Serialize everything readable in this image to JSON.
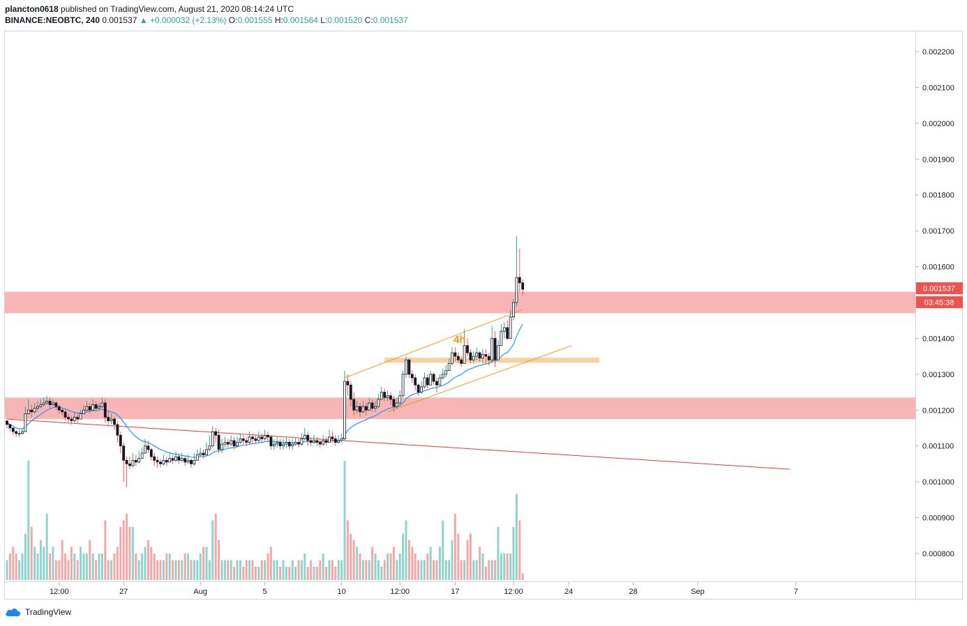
{
  "header": {
    "line1_user": "plancton0618",
    "line1_rest": " published on TradingView.com, August 21, 2020 08:14:24 UTC",
    "symbol": "BINANCE:NEOBTC, 240",
    "last": "0.001537",
    "change": "+0.000032 (+2.13%)",
    "o_label": "O:",
    "o_value": "0.001555",
    "h_label": "H:",
    "h_value": "0.001564",
    "l_label": "L:",
    "l_value": "0.001520",
    "c_label": "C:",
    "c_value": "0.001537"
  },
  "price_tag": "0.001537",
  "countdown": "03:45:38",
  "annotation_label": "4h",
  "footer_brand": "TradingView",
  "colors": {
    "up": "#26a69a",
    "down": "#ef5350",
    "zone": "#f7a8a8",
    "orange": "#f7931a",
    "ma": "#2196f3",
    "trend": "#e53935",
    "vol_up": "#8fd4cc",
    "vol_down": "#f4a7a7"
  },
  "chart_data": {
    "type": "candlestick",
    "symbol": "BINANCE:NEOBTC",
    "interval": "240",
    "ylim": [
      0.00073,
      0.00228
    ],
    "y_ticks": [
      "0.002200",
      "0.002100",
      "0.002000",
      "0.001900",
      "0.001800",
      "0.001700",
      "0.001600",
      "0.001500",
      "0.001400",
      "0.001300",
      "0.001200",
      "0.001100",
      "0.001000",
      "0.000900",
      "0.000800"
    ],
    "x_ticks": [
      {
        "label": "12:00",
        "i": 17
      },
      {
        "label": "27",
        "i": 38
      },
      {
        "label": "Aug",
        "i": 63
      },
      {
        "label": "5",
        "i": 84
      },
      {
        "label": "10",
        "i": 109
      },
      {
        "label": "12:00",
        "i": 128
      },
      {
        "label": "17",
        "i": 146
      },
      {
        "label": "12:00",
        "i": 165
      },
      {
        "label": "24",
        "i": 183
      },
      {
        "label": "28",
        "i": 204
      },
      {
        "label": "Sep",
        "i": 225
      },
      {
        "label": "7",
        "i": 257
      }
    ],
    "zones": [
      {
        "from": 0.00147,
        "to": 0.00153
      },
      {
        "from": 0.001175,
        "to": 0.001235
      }
    ],
    "close": [
      0.00116,
      0.00115,
      0.00114,
      0.001135,
      0.001135,
      0.00114,
      0.00119,
      0.0012,
      0.001195,
      0.001205,
      0.00121,
      0.001215,
      0.00122,
      0.001225,
      0.001215,
      0.00122,
      0.00121,
      0.0012,
      0.001195,
      0.00118,
      0.001175,
      0.00117,
      0.00118,
      0.001175,
      0.00119,
      0.0012,
      0.00121,
      0.0012,
      0.001215,
      0.001205,
      0.00121,
      0.00122,
      0.00118,
      0.00117,
      0.001175,
      0.00116,
      0.00113,
      0.0011,
      0.00106,
      0.00105,
      0.001045,
      0.00106,
      0.001055,
      0.001065,
      0.00108,
      0.0011,
      0.00109,
      0.00107,
      0.00106,
      0.001055,
      0.00105,
      0.00106,
      0.001055,
      0.001065,
      0.00106,
      0.00107,
      0.00106,
      0.001065,
      0.001055,
      0.00106,
      0.00105,
      0.00106,
      0.001075,
      0.00108,
      0.001075,
      0.00109,
      0.0011,
      0.00114,
      0.00113,
      0.00109,
      0.001105,
      0.00111,
      0.001105,
      0.001115,
      0.0011,
      0.00111,
      0.00112,
      0.001115,
      0.00111,
      0.001125,
      0.00112,
      0.001115,
      0.001125,
      0.00112,
      0.00113,
      0.001125,
      0.0011,
      0.001105,
      0.00111,
      0.0011,
      0.001105,
      0.00111,
      0.0011,
      0.001105,
      0.00111,
      0.001105,
      0.00112,
      0.00113,
      0.001115,
      0.00111,
      0.001115,
      0.00111,
      0.001105,
      0.001115,
      0.00111,
      0.001125,
      0.00112,
      0.00111,
      0.001115,
      0.00112,
      0.00128,
      0.00127,
      0.00123,
      0.0012,
      0.00121,
      0.001195,
      0.00121,
      0.0012,
      0.00122,
      0.001205,
      0.00121,
      0.00123,
      0.00125,
      0.001235,
      0.00124,
      0.00123,
      0.00121,
      0.00122,
      0.00124,
      0.0013,
      0.00134,
      0.0013,
      0.00129,
      0.00127,
      0.00125,
      0.001265,
      0.00129,
      0.00127,
      0.0013,
      0.00128,
      0.00127,
      0.00129,
      0.0013,
      0.00131,
      0.00133,
      0.00136,
      0.00135,
      0.00134,
      0.00133,
      0.00138,
      0.00136,
      0.00134,
      0.00135,
      0.00136,
      0.001345,
      0.001355,
      0.00135,
      0.00134,
      0.0014,
      0.00134,
      0.00138,
      0.00142,
      0.00143,
      0.0014,
      0.00146,
      0.0015,
      0.00157,
      0.001555,
      0.001537
    ],
    "high": [
      0.00117,
      0.00116,
      0.00115,
      0.001145,
      0.001145,
      0.00115,
      0.00121,
      0.00123,
      0.001215,
      0.00122,
      0.001225,
      0.00123,
      0.001235,
      0.00124,
      0.001235,
      0.00123,
      0.001225,
      0.001215,
      0.001205,
      0.0012,
      0.00119,
      0.001185,
      0.001195,
      0.00119,
      0.0012,
      0.001215,
      0.001225,
      0.00122,
      0.00123,
      0.001225,
      0.00122,
      0.001235,
      0.00123,
      0.001195,
      0.00119,
      0.00118,
      0.00117,
      0.00114,
      0.00111,
      0.00107,
      0.00107,
      0.00108,
      0.001075,
      0.001085,
      0.001095,
      0.00112,
      0.001115,
      0.001095,
      0.00108,
      0.00107,
      0.001065,
      0.001075,
      0.00107,
      0.00108,
      0.001075,
      0.001085,
      0.00108,
      0.00108,
      0.00107,
      0.001075,
      0.001065,
      0.00108,
      0.00109,
      0.001095,
      0.00109,
      0.00111,
      0.00113,
      0.001155,
      0.00115,
      0.001145,
      0.00112,
      0.001125,
      0.00112,
      0.00113,
      0.001125,
      0.001125,
      0.001135,
      0.00113,
      0.001125,
      0.00114,
      0.001135,
      0.00113,
      0.00114,
      0.001135,
      0.001145,
      0.00114,
      0.00113,
      0.00112,
      0.001125,
      0.00112,
      0.00112,
      0.001125,
      0.00112,
      0.00112,
      0.001125,
      0.00112,
      0.001135,
      0.00115,
      0.00114,
      0.001125,
      0.00113,
      0.001125,
      0.00112,
      0.00113,
      0.001125,
      0.001145,
      0.00114,
      0.00113,
      0.00113,
      0.001135,
      0.00131,
      0.0013,
      0.00128,
      0.00125,
      0.001225,
      0.00122,
      0.001225,
      0.00122,
      0.001235,
      0.00123,
      0.001225,
      0.001245,
      0.001265,
      0.00126,
      0.001255,
      0.00125,
      0.00124,
      0.001235,
      0.001255,
      0.00131,
      0.00135,
      0.001345,
      0.00131,
      0.0013,
      0.001275,
      0.00128,
      0.001305,
      0.0013,
      0.00131,
      0.001305,
      0.00129,
      0.0013,
      0.001315,
      0.001325,
      0.001345,
      0.001375,
      0.001375,
      0.00136,
      0.00135,
      0.001425,
      0.0014,
      0.00137,
      0.001365,
      0.001375,
      0.001365,
      0.00137,
      0.00137,
      0.00136,
      0.001435,
      0.00142,
      0.001395,
      0.00144,
      0.001445,
      0.00145,
      0.00148,
      0.00151,
      0.001685,
      0.00165,
      0.001564
    ],
    "low": [
      0.00115,
      0.00114,
      0.00113,
      0.001125,
      0.001125,
      0.00113,
      0.00114,
      0.00119,
      0.00118,
      0.00119,
      0.001195,
      0.001205,
      0.00121,
      0.001215,
      0.001205,
      0.00121,
      0.0012,
      0.00119,
      0.001185,
      0.00117,
      0.001165,
      0.00116,
      0.001165,
      0.001165,
      0.001175,
      0.00119,
      0.001195,
      0.00119,
      0.0012,
      0.001195,
      0.0012,
      0.001205,
      0.001165,
      0.001155,
      0.00116,
      0.001145,
      0.00111,
      0.00108,
      0.001,
      0.000985,
      0.001035,
      0.00104,
      0.001045,
      0.00105,
      0.001065,
      0.00108,
      0.00108,
      0.00106,
      0.001045,
      0.00104,
      0.00104,
      0.001045,
      0.001045,
      0.001055,
      0.00105,
      0.001055,
      0.00105,
      0.001055,
      0.001045,
      0.00105,
      0.00104,
      0.001045,
      0.00106,
      0.00107,
      0.001065,
      0.001075,
      0.001085,
      0.001095,
      0.00111,
      0.00108,
      0.00108,
      0.001095,
      0.001095,
      0.0011,
      0.00109,
      0.001095,
      0.001105,
      0.001105,
      0.0011,
      0.001105,
      0.001105,
      0.001105,
      0.00111,
      0.00111,
      0.001115,
      0.00111,
      0.00109,
      0.00109,
      0.001095,
      0.00109,
      0.00109,
      0.001095,
      0.00109,
      0.00109,
      0.0011,
      0.001095,
      0.0011,
      0.001115,
      0.0011,
      0.0011,
      0.001105,
      0.0011,
      0.001095,
      0.0011,
      0.0011,
      0.00111,
      0.00111,
      0.0011,
      0.001105,
      0.00111,
      0.001115,
      0.00124,
      0.00121,
      0.001185,
      0.00119,
      0.00118,
      0.00119,
      0.001185,
      0.0012,
      0.001195,
      0.001195,
      0.001205,
      0.00123,
      0.001225,
      0.001225,
      0.001215,
      0.001195,
      0.001205,
      0.001215,
      0.001235,
      0.00129,
      0.00129,
      0.001275,
      0.001255,
      0.00124,
      0.001245,
      0.00126,
      0.00126,
      0.00127,
      0.00127,
      0.00125,
      0.00127,
      0.001285,
      0.00129,
      0.00131,
      0.001325,
      0.001335,
      0.00133,
      0.00132,
      0.00133,
      0.00135,
      0.00133,
      0.00133,
      0.00134,
      0.001335,
      0.00133,
      0.00133,
      0.001325,
      0.00133,
      0.00132,
      0.00136,
      0.00138,
      0.0014,
      0.001395,
      0.00142,
      0.00145,
      0.00149,
      0.00153,
      0.00152
    ],
    "volume": [
      3,
      4,
      5,
      4,
      3,
      4,
      7,
      18,
      8,
      5,
      4,
      6,
      5,
      10,
      4,
      5,
      3,
      3,
      6,
      4,
      3,
      5,
      4,
      3,
      5,
      4,
      4,
      6,
      4,
      3,
      4,
      4,
      9,
      3,
      3,
      4,
      5,
      8,
      9,
      10,
      8,
      8,
      4,
      3,
      4,
      5,
      6,
      5,
      4,
      3,
      3,
      3,
      4,
      4,
      3,
      3,
      3,
      3,
      4,
      4,
      3,
      3,
      3,
      4,
      5,
      5,
      3,
      9,
      10,
      6,
      3,
      3,
      3,
      3,
      2,
      3,
      3,
      2,
      3,
      3,
      3,
      2,
      2,
      3,
      3,
      4,
      5,
      3,
      3,
      2,
      3,
      2,
      2,
      3,
      2,
      3,
      3,
      4,
      2,
      3,
      2,
      2,
      3,
      4,
      2,
      3,
      3,
      2,
      3,
      3,
      18,
      9,
      7,
      6,
      5,
      4,
      3,
      3,
      3,
      5,
      4,
      3,
      2,
      3,
      4,
      4,
      5,
      3,
      4,
      7,
      9,
      6,
      5,
      4,
      3,
      3,
      3,
      4,
      5,
      3,
      3,
      5,
      9,
      3,
      3,
      6,
      10,
      7,
      3,
      3,
      6,
      7,
      3,
      3,
      5,
      4,
      2,
      3,
      3,
      3,
      8,
      4,
      4,
      4,
      4,
      8,
      13,
      9,
      1
    ],
    "ma": [
      0.001165,
      0.00116,
      0.001155,
      0.00115,
      0.001148,
      0.001148,
      0.001154,
      0.001162,
      0.00117,
      0.001176,
      0.001182,
      0.001188,
      0.001194,
      0.0012,
      0.001203,
      0.001207,
      0.001208,
      0.001208,
      0.001206,
      0.001203,
      0.0012,
      0.001196,
      0.001194,
      0.001192,
      0.001192,
      0.001193,
      0.001195,
      0.001196,
      0.001198,
      0.001199,
      0.0012,
      0.001202,
      0.0012,
      0.001197,
      0.001195,
      0.001192,
      0.001186,
      0.001178,
      0.001166,
      0.001154,
      0.001143,
      0.001134,
      0.001126,
      0.001119,
      0.001114,
      0.001112,
      0.001109,
      0.001105,
      0.0011,
      0.001095,
      0.00109,
      0.001087,
      0.001083,
      0.001081,
      0.001078,
      0.001077,
      0.001075,
      0.001074,
      0.001072,
      0.001071,
      0.001069,
      0.001068,
      0.001069,
      0.00107,
      0.00107,
      0.001072,
      0.001075,
      0.001081,
      0.001085,
      0.001086,
      0.001088,
      0.001091,
      0.001093,
      0.001095,
      0.001096,
      0.001098,
      0.0011,
      0.001102,
      0.001103,
      0.001105,
      0.001106,
      0.001107,
      0.001109,
      0.00111,
      0.001112,
      0.001113,
      0.001112,
      0.001112,
      0.001112,
      0.001111,
      0.00111,
      0.00111,
      0.00111,
      0.001109,
      0.001109,
      0.001109,
      0.00111,
      0.001112,
      0.001112,
      0.001112,
      0.001112,
      0.001112,
      0.001112,
      0.001112,
      0.001112,
      0.001113,
      0.001114,
      0.001114,
      0.001114,
      0.001115,
      0.00113,
      0.001144,
      0.001152,
      0.001157,
      0.001162,
      0.001166,
      0.00117,
      0.001173,
      0.001178,
      0.001181,
      0.001184,
      0.001189,
      0.001195,
      0.001199,
      0.001203,
      0.001206,
      0.001207,
      0.001209,
      0.001212,
      0.00122,
      0.001231,
      0.001238,
      0.001243,
      0.001246,
      0.001248,
      0.00125,
      0.001254,
      0.001256,
      0.00126,
      0.001262,
      0.001263,
      0.001266,
      0.001269,
      0.001273,
      0.001278,
      0.001286,
      0.001292,
      0.001296,
      0.001299,
      0.001307,
      0.001312,
      0.001315,
      0.001318,
      0.001322,
      0.001324,
      0.001327,
      0.001329,
      0.00133,
      0.001337,
      0.001337,
      0.001341,
      0.001349,
      0.001357,
      0.001361,
      0.001371,
      0.001384,
      0.001406,
      0.001425,
      0.001439
    ],
    "lines": [
      {
        "name": "trendline",
        "color": "#e53935",
        "from": {
          "i": 0,
          "price": 0.001175
        },
        "to": {
          "i": 255,
          "price": 0.001035
        }
      },
      {
        "name": "channel-upper",
        "color": "#f7931a",
        "from": {
          "i": 110,
          "price": 0.00129
        },
        "to": {
          "i": 168,
          "price": 0.00148
        }
      },
      {
        "name": "channel-lower",
        "color": "#f7931a",
        "from": {
          "i": 124,
          "price": 0.001195
        },
        "to": {
          "i": 184,
          "price": 0.00138
        }
      }
    ],
    "orange_box": {
      "from_i": 123,
      "to_i": 193,
      "from": 0.001332,
      "to": 0.001346
    }
  }
}
